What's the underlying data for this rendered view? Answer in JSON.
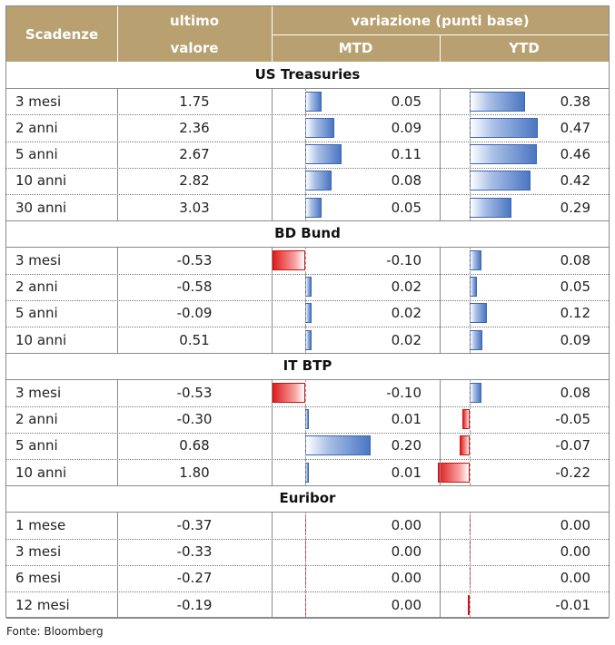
{
  "header": {
    "col_scadenze": "Scadenze",
    "col_ultimo_line1": "ultimo",
    "col_ultimo_line2": "valore",
    "col_variazione": "variazione (punti base)",
    "col_mtd": "MTD",
    "col_ytd": "YTD"
  },
  "groups": [
    {
      "title": "US Treasuries",
      "rows": [
        {
          "name": "3 mesi",
          "value": "1.75",
          "mtd": "0.05",
          "ytd": "0.38"
        },
        {
          "name": "2 anni",
          "value": "2.36",
          "mtd": "0.09",
          "ytd": "0.47"
        },
        {
          "name": "5 anni",
          "value": "2.67",
          "mtd": "0.11",
          "ytd": "0.46"
        },
        {
          "name": "10 anni",
          "value": "2.82",
          "mtd": "0.08",
          "ytd": "0.42"
        },
        {
          "name": "30 anni",
          "value": "3.03",
          "mtd": "0.05",
          "ytd": "0.29"
        }
      ]
    },
    {
      "title": "BD Bund",
      "rows": [
        {
          "name": "3 mesi",
          "value": "-0.53",
          "mtd": "-0.10",
          "ytd": "0.08"
        },
        {
          "name": "2 anni",
          "value": "-0.58",
          "mtd": "0.02",
          "ytd": "0.05"
        },
        {
          "name": "5 anni",
          "value": "-0.09",
          "mtd": "0.02",
          "ytd": "0.12"
        },
        {
          "name": "10 anni",
          "value": "0.51",
          "mtd": "0.02",
          "ytd": "0.09"
        }
      ]
    },
    {
      "title": "IT BTP",
      "rows": [
        {
          "name": "3 mesi",
          "value": "-0.53",
          "mtd": "-0.10",
          "ytd": "0.08"
        },
        {
          "name": "2 anni",
          "value": "-0.30",
          "mtd": "0.01",
          "ytd": "-0.05"
        },
        {
          "name": "5 anni",
          "value": "0.68",
          "mtd": "0.20",
          "ytd": "-0.07"
        },
        {
          "name": "10 anni",
          "value": "1.80",
          "mtd": "0.01",
          "ytd": "-0.22"
        }
      ]
    },
    {
      "title": "Euribor",
      "rows": [
        {
          "name": "1 mese",
          "value": "-0.37",
          "mtd": "0.00",
          "ytd": "0.00"
        },
        {
          "name": "3 mesi",
          "value": "-0.33",
          "mtd": "0.00",
          "ytd": "0.00"
        },
        {
          "name": "6 mesi",
          "value": "-0.27",
          "mtd": "0.00",
          "ytd": "0.00"
        },
        {
          "name": "12 mesi",
          "value": "-0.19",
          "mtd": "0.00",
          "ytd": "-0.01"
        }
      ]
    }
  ],
  "footer": {
    "source": "Fonte: Bloomberg"
  },
  "colors": {
    "header_bg": "#b8a070",
    "bar_positive": "#4a76c2",
    "bar_negative": "#e01e1e"
  }
}
